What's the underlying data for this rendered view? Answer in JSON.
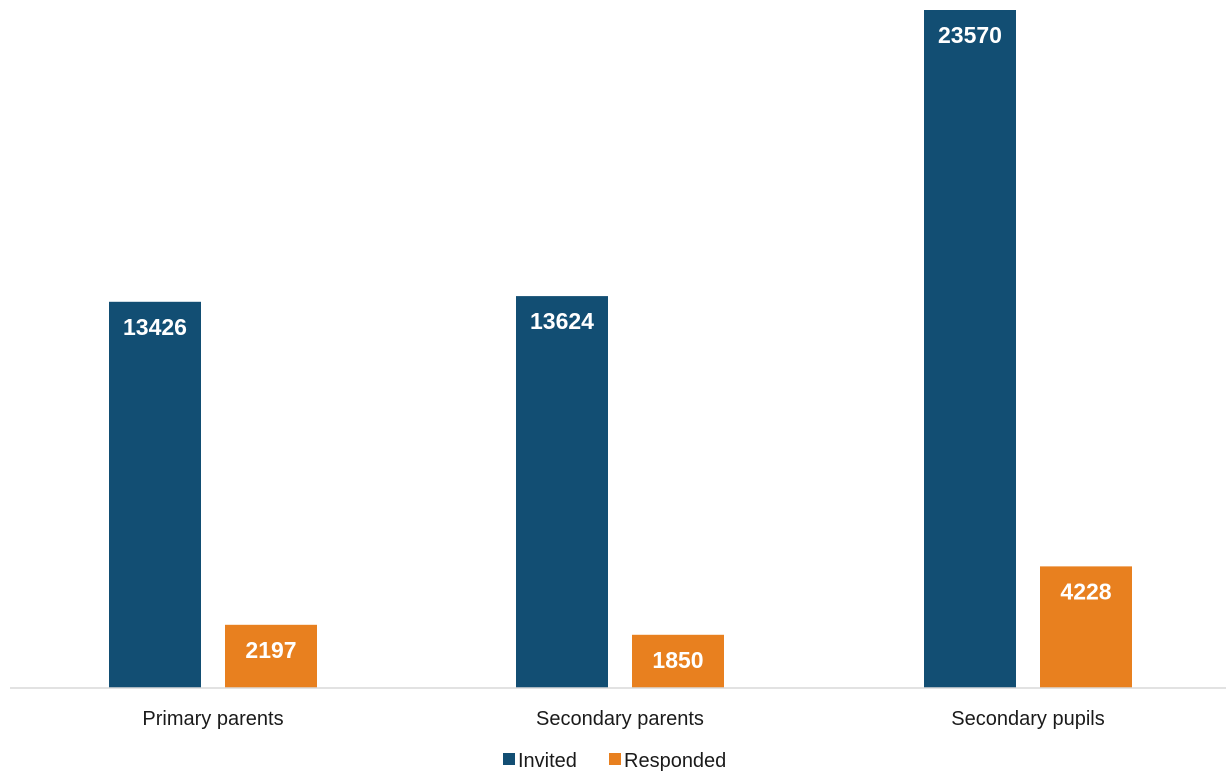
{
  "chart_data": {
    "type": "bar",
    "categories": [
      "Primary parents",
      "Secondary parents",
      "Secondary pupils"
    ],
    "series": [
      {
        "name": "Invited",
        "values": [
          13426,
          13624,
          23570
        ],
        "color": "#124e73"
      },
      {
        "name": "Responded",
        "values": [
          2197,
          1850,
          4228
        ],
        "color": "#e8801f"
      }
    ],
    "title": "",
    "xlabel": "",
    "ylabel": "",
    "ylim": [
      0,
      23570
    ],
    "grid": false,
    "legend_position": "bottom",
    "data_labels": true
  }
}
